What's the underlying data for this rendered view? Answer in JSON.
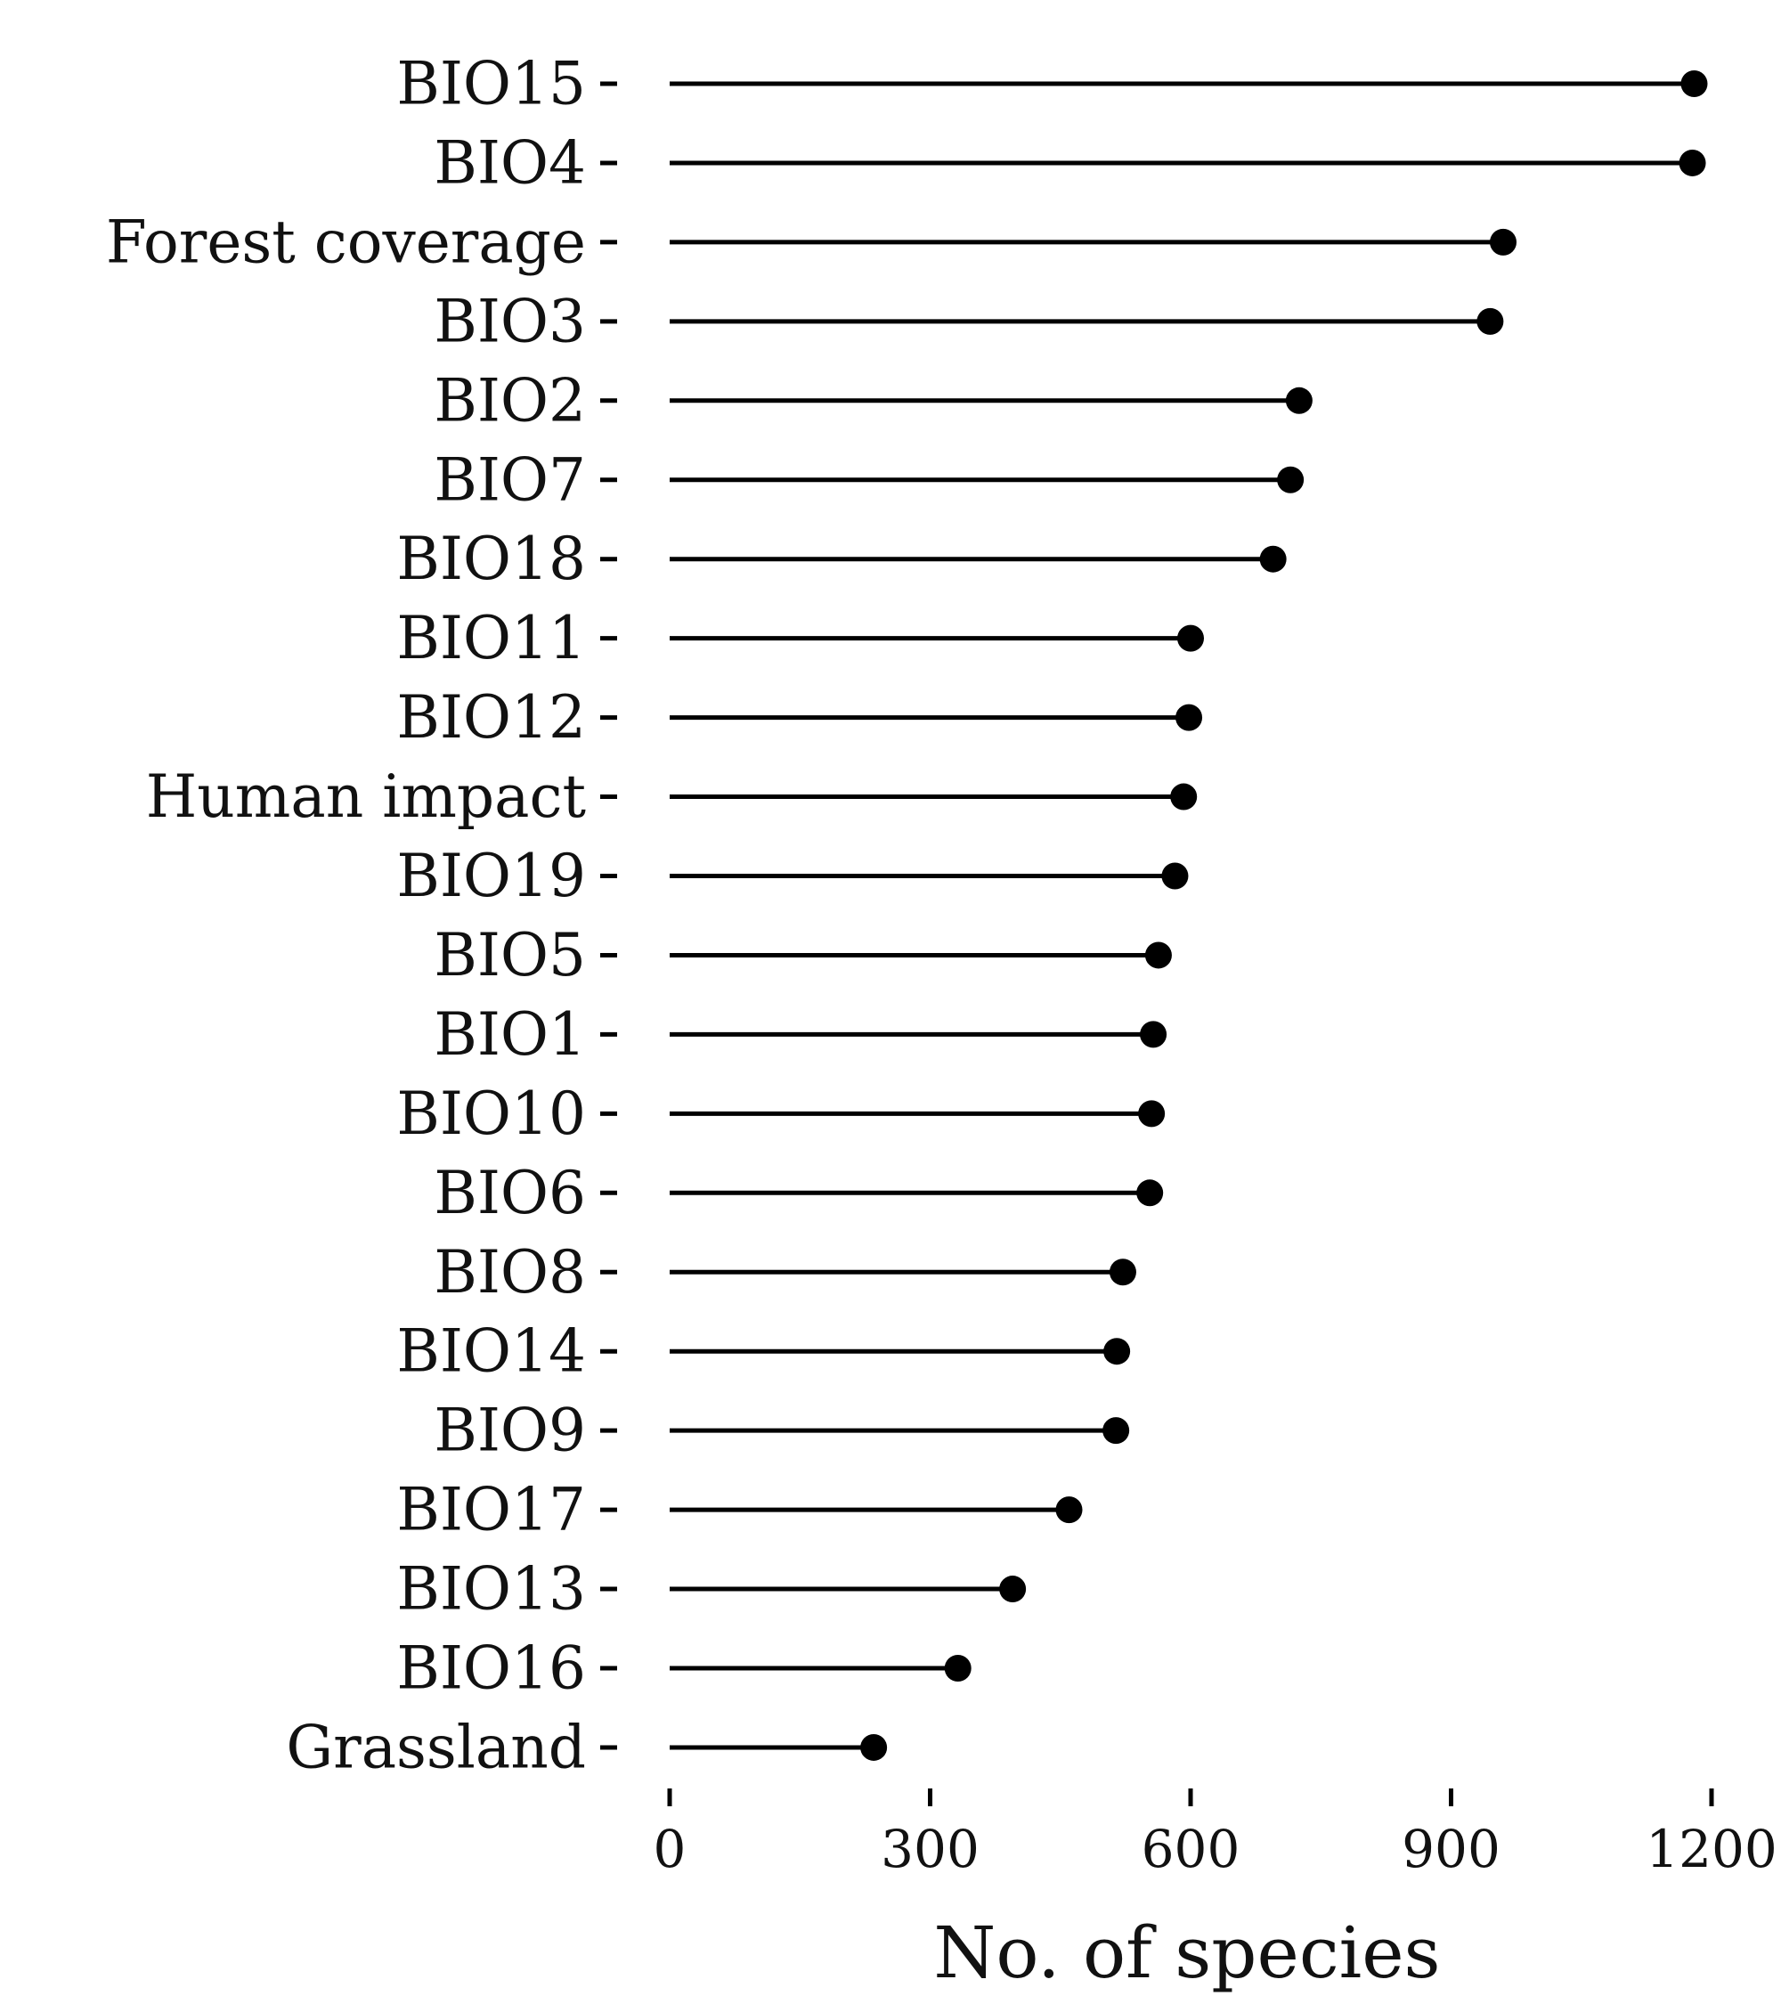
{
  "chart_data": {
    "type": "lollipop",
    "title": "",
    "xlabel": "No. of species",
    "ylabel": "",
    "xlim": [
      0,
      1200
    ],
    "x_ticks": [
      0,
      300,
      600,
      900,
      1200
    ],
    "grid": false,
    "legend": "none",
    "colors": {
      "stem": "#000000",
      "point": "#000000",
      "text": "#111111"
    },
    "categories": [
      "BIO15",
      "BIO4",
      "Forest coverage",
      "BIO3",
      "BIO2",
      "BIO7",
      "BIO18",
      "BIO11",
      "BIO12",
      "Human impact",
      "BIO19",
      "BIO5",
      "BIO1",
      "BIO10",
      "BIO6",
      "BIO8",
      "BIO14",
      "BIO9",
      "BIO17",
      "BIO13",
      "BIO16",
      "Grassland"
    ],
    "values": [
      1180,
      1178,
      960,
      945,
      725,
      715,
      695,
      600,
      598,
      592,
      582,
      563,
      557,
      555,
      553,
      522,
      515,
      514,
      460,
      395,
      332,
      235
    ]
  }
}
